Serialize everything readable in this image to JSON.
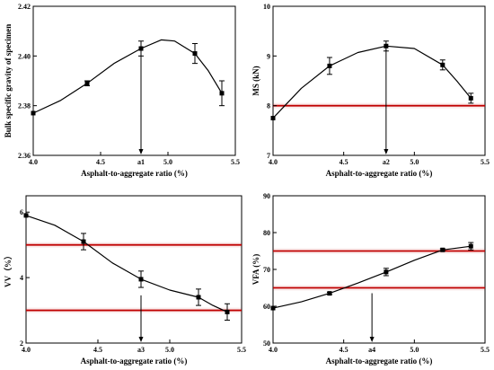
{
  "chart_data": [
    {
      "type": "line",
      "xlabel": "Asphalt-to-aggregate ratio (%)",
      "ylabel": "Bulk specific gravity of specimen",
      "xlim": [
        4.0,
        5.5
      ],
      "ylim": [
        2.36,
        2.42
      ],
      "xticks": [
        "4.0",
        "4.5",
        "5.0",
        "5.5"
      ],
      "yticks": [
        "2.36",
        "2.38",
        "2.40",
        "2.42"
      ],
      "x": [
        4.0,
        4.4,
        4.8,
        5.2,
        5.4
      ],
      "values": [
        2.377,
        2.389,
        2.403,
        2.401,
        2.385
      ],
      "errors": [
        0.0,
        0.001,
        0.003,
        0.004,
        0.005
      ],
      "curve": [
        [
          4.0,
          2.377
        ],
        [
          4.2,
          2.382
        ],
        [
          4.4,
          2.389
        ],
        [
          4.6,
          2.397
        ],
        [
          4.8,
          2.403
        ],
        [
          4.95,
          2.4065
        ],
        [
          5.05,
          2.406
        ],
        [
          5.2,
          2.401
        ],
        [
          5.3,
          2.394
        ],
        [
          5.4,
          2.385
        ]
      ],
      "hlines": [],
      "marker": {
        "label": "a1",
        "x": 4.8
      }
    },
    {
      "type": "line",
      "xlabel": "Asphalt-to-aggregate ratio (%)",
      "ylabel": "MS (kN)",
      "xlim": [
        4.0,
        5.5
      ],
      "ylim": [
        7,
        10
      ],
      "xticks": [
        "4.0",
        "4.5",
        "5.0",
        "5.5"
      ],
      "yticks": [
        "7",
        "8",
        "9",
        "10"
      ],
      "x": [
        4.0,
        4.4,
        4.8,
        5.2,
        5.4
      ],
      "values": [
        7.75,
        8.8,
        9.2,
        8.82,
        8.15
      ],
      "errors": [
        0.0,
        0.17,
        0.1,
        0.1,
        0.1
      ],
      "curve": [
        [
          4.0,
          7.75
        ],
        [
          4.2,
          8.35
        ],
        [
          4.4,
          8.8
        ],
        [
          4.6,
          9.07
        ],
        [
          4.8,
          9.2
        ],
        [
          5.0,
          9.15
        ],
        [
          5.2,
          8.82
        ],
        [
          5.3,
          8.5
        ],
        [
          5.4,
          8.15
        ]
      ],
      "hlines": [
        8.0
      ],
      "marker": {
        "label": "a2",
        "x": 4.8
      }
    },
    {
      "type": "line",
      "xlabel": "Asphalt-to-aggregate ratio (%)",
      "ylabel": "VV（%）",
      "xlim": [
        4.0,
        5.5
      ],
      "ylim": [
        2,
        6.5
      ],
      "xticks": [
        "4.0",
        "4.5",
        "5.0",
        "5.5"
      ],
      "yticks": [
        "2",
        "4",
        "6"
      ],
      "x": [
        4.0,
        4.4,
        4.8,
        5.2,
        5.4
      ],
      "values": [
        5.9,
        5.1,
        3.95,
        3.4,
        2.95
      ],
      "errors": [
        0.0,
        0.25,
        0.25,
        0.25,
        0.25
      ],
      "curve": [
        [
          4.0,
          5.9
        ],
        [
          4.2,
          5.6
        ],
        [
          4.4,
          5.1
        ],
        [
          4.6,
          4.45
        ],
        [
          4.8,
          3.95
        ],
        [
          5.0,
          3.62
        ],
        [
          5.2,
          3.4
        ],
        [
          5.3,
          3.15
        ],
        [
          5.4,
          2.95
        ]
      ],
      "hlines": [
        5.0,
        3.0
      ],
      "marker": {
        "label": "a3",
        "x": 4.8
      }
    },
    {
      "type": "line",
      "xlabel": "Asphalt-to-aggregate ratio (%)",
      "ylabel": "VFA (%)",
      "xlim": [
        4.0,
        5.5
      ],
      "ylim": [
        50,
        90
      ],
      "xticks": [
        "4.0",
        "4.5",
        "5.0",
        "5.5"
      ],
      "yticks": [
        "50",
        "60",
        "70",
        "80",
        "90"
      ],
      "x": [
        4.0,
        4.4,
        4.8,
        5.2,
        5.4
      ],
      "values": [
        59.5,
        63.5,
        69.3,
        75.3,
        76.3
      ],
      "errors": [
        0.0,
        0.3,
        1.0,
        0.3,
        1.0
      ],
      "curve": [
        [
          4.0,
          59.5
        ],
        [
          4.2,
          61.2
        ],
        [
          4.4,
          63.5
        ],
        [
          4.6,
          66.3
        ],
        [
          4.8,
          69.3
        ],
        [
          5.0,
          72.5
        ],
        [
          5.2,
          75.3
        ],
        [
          5.4,
          76.3
        ]
      ],
      "hlines": [
        75.0,
        65.0
      ],
      "marker": {
        "label": "a4",
        "x": 4.7
      }
    }
  ],
  "colors": {
    "axis": "#000000",
    "line": "#000000",
    "limit": "#c00000"
  }
}
